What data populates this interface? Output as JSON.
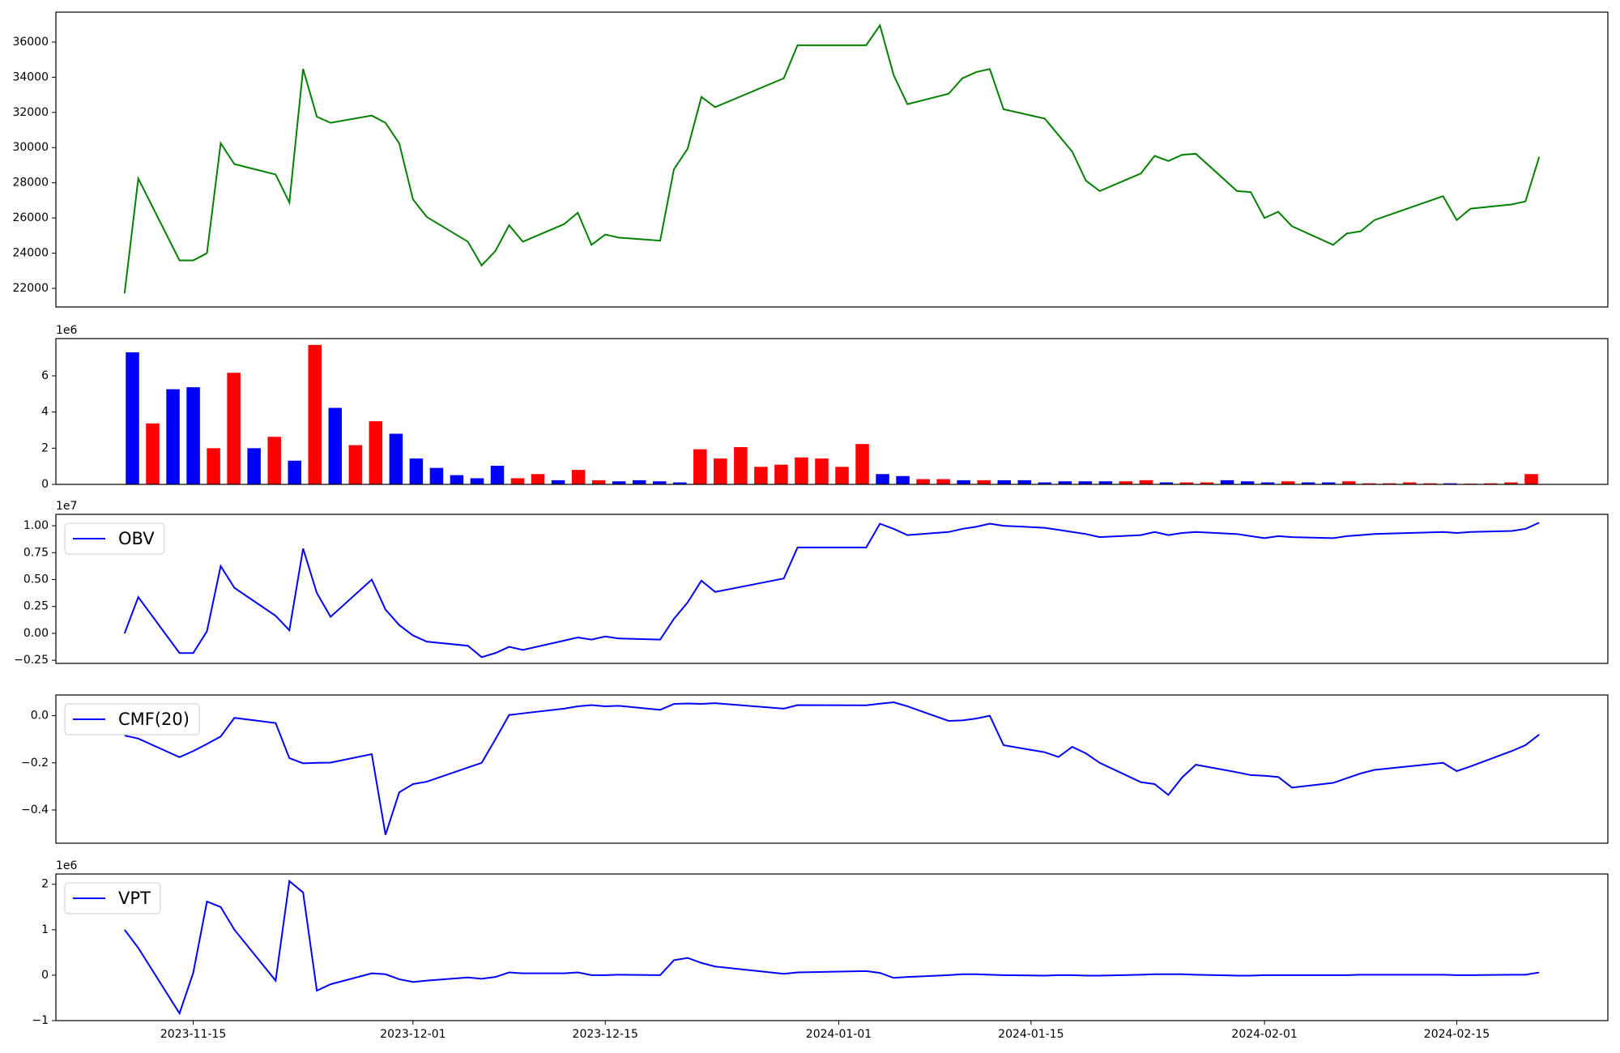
{
  "chart_data": [
    {
      "type": "line",
      "color": "green",
      "x": [
        "2023-11-10",
        "2023-11-11",
        "2023-11-14",
        "2023-11-15",
        "2023-11-16",
        "2023-11-17",
        "2023-11-18",
        "2023-11-21",
        "2023-11-22",
        "2023-11-23",
        "2023-11-24",
        "2023-11-25",
        "2023-11-28",
        "2023-11-29",
        "2023-11-30",
        "2023-12-01",
        "2023-12-02",
        "2023-12-05",
        "2023-12-06",
        "2023-12-07",
        "2023-12-08",
        "2023-12-09",
        "2023-12-12",
        "2023-12-13",
        "2023-12-14",
        "2023-12-15",
        "2023-12-16",
        "2023-12-19",
        "2023-12-20",
        "2023-12-21",
        "2023-12-22",
        "2023-12-23",
        "2023-12-28",
        "2023-12-29",
        "2024-01-03",
        "2024-01-04",
        "2024-01-05",
        "2024-01-06",
        "2024-01-09",
        "2024-01-10",
        "2024-01-11",
        "2024-01-12",
        "2024-01-13",
        "2024-01-16",
        "2024-01-17",
        "2024-01-18",
        "2024-01-19",
        "2024-01-20",
        "2024-01-23",
        "2024-01-24",
        "2024-01-25",
        "2024-01-26",
        "2024-01-27",
        "2024-01-30",
        "2024-01-31",
        "2024-02-01",
        "2024-02-02",
        "2024-02-03",
        "2024-02-06",
        "2024-02-07",
        "2024-02-08",
        "2024-02-09",
        "2024-02-14",
        "2024-02-15",
        "2024-02-16",
        "2024-02-19",
        "2024-02-20",
        "2024-02-21"
      ],
      "values": [
        21710,
        28240,
        23590,
        23590,
        24000,
        30250,
        29060,
        28470,
        26880,
        34470,
        31760,
        31410,
        31820,
        31410,
        30240,
        27060,
        26060,
        24650,
        23300,
        24120,
        25590,
        24650,
        25650,
        26300,
        24470,
        25060,
        24880,
        24710,
        28770,
        29940,
        32880,
        32300,
        33940,
        35820,
        35820,
        36950,
        34120,
        32470,
        33060,
        33940,
        34290,
        34470,
        32180,
        31650,
        30710,
        29770,
        28120,
        27530,
        28530,
        29530,
        29240,
        29590,
        29650,
        27530,
        27470,
        26000,
        26350,
        25530,
        24470,
        25120,
        25240,
        25880,
        27240,
        25880,
        26530,
        26770,
        26940,
        29470
      ],
      "xlim": [
        "2023-11-05",
        "2024-02-26"
      ],
      "ylim": [
        20940,
        37700
      ],
      "yticks": [
        22000,
        24000,
        26000,
        28000,
        30000,
        32000,
        34000,
        36000
      ]
    },
    {
      "type": "bar",
      "offset_label": "1e6",
      "categories": [
        null,
        null,
        null,
        null,
        null,
        null,
        null,
        null,
        null,
        null,
        null,
        null,
        null,
        null,
        null,
        null,
        null,
        null,
        null,
        null,
        null,
        null,
        null,
        null,
        null,
        null,
        null,
        null,
        null,
        null,
        null,
        null,
        null,
        null,
        null,
        null,
        null,
        null,
        null,
        null,
        null,
        null,
        null,
        null,
        null,
        null,
        null,
        null,
        null,
        null,
        null,
        null,
        null,
        null,
        null,
        null,
        null,
        null,
        null,
        null,
        null,
        null,
        null,
        null,
        null,
        null,
        null,
        null,
        null,
        null
      ],
      "values": [
        7300000,
        3370000,
        5260000,
        5370000,
        2000000,
        6170000,
        2000000,
        2630000,
        1310000,
        7710000,
        4230000,
        2170000,
        3490000,
        2800000,
        1430000,
        910000,
        510000,
        340000,
        1030000,
        340000,
        570000,
        230000,
        800000,
        230000,
        170000,
        230000,
        170000,
        110000,
        1940000,
        1430000,
        2060000,
        970000,
        1090000,
        1490000,
        1430000,
        970000,
        2230000,
        570000,
        460000,
        290000,
        290000,
        230000,
        230000,
        230000,
        230000,
        110000,
        170000,
        170000,
        170000,
        170000,
        230000,
        110000,
        110000,
        110000,
        230000,
        170000,
        110000,
        170000,
        110000,
        110000,
        170000,
        60000,
        60000,
        110000,
        60000,
        60000,
        40000,
        60000,
        110000,
        570000
      ],
      "colors": [
        "blue",
        "red",
        "blue",
        "blue",
        "red",
        "red",
        "blue",
        "red",
        "blue",
        "red",
        "blue",
        "red",
        "red",
        "blue",
        "blue",
        "blue",
        "blue",
        "blue",
        "blue",
        "red",
        "red",
        "blue",
        "red",
        "red",
        "blue",
        "blue",
        "blue",
        "blue",
        "red",
        "red",
        "red",
        "red",
        "red",
        "red",
        "red",
        "red",
        "red",
        "blue",
        "blue",
        "red",
        "red",
        "blue",
        "red",
        "blue",
        "blue",
        "blue",
        "blue",
        "blue",
        "blue",
        "red",
        "red",
        "blue",
        "red",
        "red",
        "blue",
        "blue",
        "blue",
        "red",
        "blue",
        "blue",
        "red",
        "red",
        "red",
        "red",
        "red",
        "blue",
        "red",
        "red",
        "red",
        "red"
      ],
      "ylim": [
        0,
        8060000
      ],
      "yticks": [
        {
          "value": 0,
          "label": "0"
        },
        {
          "value": 2000000,
          "label": "2"
        },
        {
          "value": 4000000,
          "label": "4"
        },
        {
          "value": 6000000,
          "label": "6"
        }
      ]
    },
    {
      "type": "line",
      "offset_label": "1e7",
      "legend": "upper left",
      "x": [
        "2023-11-10",
        "2023-11-11",
        "2023-11-14",
        "2023-11-15",
        "2023-11-16",
        "2023-11-17",
        "2023-11-18",
        "2023-11-21",
        "2023-11-22",
        "2023-11-23",
        "2023-11-24",
        "2023-11-25",
        "2023-11-28",
        "2023-11-29",
        "2023-11-30",
        "2023-12-01",
        "2023-12-02",
        "2023-12-05",
        "2023-12-06",
        "2023-12-07",
        "2023-12-08",
        "2023-12-09",
        "2023-12-12",
        "2023-12-13",
        "2023-12-14",
        "2023-12-15",
        "2023-12-16",
        "2023-12-19",
        "2023-12-20",
        "2023-12-21",
        "2023-12-22",
        "2023-12-23",
        "2023-12-28",
        "2023-12-29",
        "2024-01-03",
        "2024-01-04",
        "2024-01-05",
        "2024-01-06",
        "2024-01-09",
        "2024-01-10",
        "2024-01-11",
        "2024-01-12",
        "2024-01-13",
        "2024-01-16",
        "2024-01-17",
        "2024-01-18",
        "2024-01-19",
        "2024-01-20",
        "2024-01-23",
        "2024-01-24",
        "2024-01-25",
        "2024-01-26",
        "2024-01-27",
        "2024-01-30",
        "2024-01-31",
        "2024-02-01",
        "2024-02-02",
        "2024-02-03",
        "2024-02-06",
        "2024-02-07",
        "2024-02-08",
        "2024-02-09",
        "2024-02-14",
        "2024-02-15",
        "2024-02-16",
        "2024-02-19",
        "2024-02-20",
        "2024-02-21"
      ],
      "series": [
        {
          "name": "OBV",
          "color": "blue",
          "values": [
            0,
            3370000,
            -1830000,
            -1830000,
            200000,
            6250000,
            4230000,
            1630000,
            290000,
            7880000,
            3750000,
            1540000,
            5000000,
            2210000,
            770000,
            -190000,
            -770000,
            -1150000,
            -2210000,
            -1830000,
            -1250000,
            -1540000,
            -670000,
            -380000,
            -580000,
            -290000,
            -480000,
            -580000,
            1350000,
            2880000,
            4900000,
            3850000,
            5100000,
            7980000,
            7980000,
            10190000,
            9710000,
            9130000,
            9420000,
            9710000,
            9900000,
            10190000,
            10000000,
            9810000,
            9620000,
            9420000,
            9230000,
            8940000,
            9130000,
            9420000,
            9130000,
            9330000,
            9420000,
            9230000,
            9040000,
            8850000,
            9040000,
            8940000,
            8850000,
            9040000,
            9130000,
            9230000,
            9420000,
            9330000,
            9420000,
            9520000,
            9710000,
            10290000
          ]
        }
      ],
      "xlim": [
        "2023-11-05",
        "2024-02-26"
      ],
      "ylim": [
        -2790000,
        11060000
      ],
      "yticks": [
        {
          "value": -2500000,
          "label": "−0.25"
        },
        {
          "value": 0,
          "label": "0.00"
        },
        {
          "value": 2500000,
          "label": "0.25"
        },
        {
          "value": 5000000,
          "label": "0.50"
        },
        {
          "value": 7500000,
          "label": "0.75"
        },
        {
          "value": 10000000,
          "label": "1.00"
        }
      ]
    },
    {
      "type": "line",
      "legend": "upper left",
      "x": [
        "2023-11-10",
        "2023-11-11",
        "2023-11-14",
        "2023-11-15",
        "2023-11-16",
        "2023-11-17",
        "2023-11-18",
        "2023-11-21",
        "2023-11-22",
        "2023-11-23",
        "2023-11-24",
        "2023-11-25",
        "2023-11-28",
        "2023-11-29",
        "2023-11-30",
        "2023-12-01",
        "2023-12-02",
        "2023-12-05",
        "2023-12-06",
        "2023-12-07",
        "2023-12-08",
        "2023-12-09",
        "2023-12-12",
        "2023-12-13",
        "2023-12-14",
        "2023-12-15",
        "2023-12-16",
        "2023-12-19",
        "2023-12-20",
        "2023-12-21",
        "2023-12-22",
        "2023-12-23",
        "2023-12-28",
        "2023-12-29",
        "2024-01-03",
        "2024-01-04",
        "2024-01-05",
        "2024-01-06",
        "2024-01-09",
        "2024-01-10",
        "2024-01-11",
        "2024-01-12",
        "2024-01-13",
        "2024-01-16",
        "2024-01-17",
        "2024-01-18",
        "2024-01-19",
        "2024-01-20",
        "2024-01-23",
        "2024-01-24",
        "2024-01-25",
        "2024-01-26",
        "2024-01-27",
        "2024-01-30",
        "2024-01-31",
        "2024-02-01",
        "2024-02-02",
        "2024-02-03",
        "2024-02-06",
        "2024-02-07",
        "2024-02-08",
        "2024-02-09",
        "2024-02-14",
        "2024-02-15",
        "2024-02-16",
        "2024-02-19",
        "2024-02-20",
        "2024-02-21"
      ],
      "series": [
        {
          "name": "CMF(20)",
          "color": "blue",
          "values": [
            -0.084,
            -0.097,
            -0.176,
            -0.15,
            -0.12,
            -0.088,
            -0.009,
            -0.031,
            -0.18,
            -0.202,
            -0.2,
            -0.199,
            -0.163,
            -0.505,
            -0.325,
            -0.29,
            -0.28,
            -0.22,
            -0.2,
            -0.1,
            0.003,
            0.01,
            0.03,
            0.04,
            0.045,
            0.04,
            0.042,
            0.025,
            0.05,
            0.052,
            0.05,
            0.053,
            0.03,
            0.045,
            0.044,
            0.051,
            0.057,
            0.04,
            -0.022,
            -0.02,
            -0.012,
            0,
            -0.125,
            -0.155,
            -0.175,
            -0.132,
            -0.16,
            -0.2,
            -0.282,
            -0.29,
            -0.336,
            -0.262,
            -0.208,
            -0.24,
            -0.252,
            -0.255,
            -0.26,
            -0.305,
            -0.285,
            -0.265,
            -0.245,
            -0.23,
            -0.2,
            -0.235,
            -0.215,
            -0.15,
            -0.125,
            -0.08
          ]
        }
      ],
      "xlim": [
        "2023-11-05",
        "2024-02-26"
      ],
      "ylim": [
        -0.541,
        0.088
      ],
      "yticks": [
        {
          "value": -0.4,
          "label": "−0.4"
        },
        {
          "value": -0.2,
          "label": "−0.2"
        },
        {
          "value": 0,
          "label": "0.0"
        }
      ]
    },
    {
      "type": "line",
      "offset_label": "1e6",
      "legend": "upper left",
      "x": [
        "2023-11-10",
        "2023-11-11",
        "2023-11-14",
        "2023-11-15",
        "2023-11-16",
        "2023-11-17",
        "2023-11-18",
        "2023-11-21",
        "2023-11-22",
        "2023-11-23",
        "2023-11-24",
        "2023-11-25",
        "2023-11-28",
        "2023-11-29",
        "2023-11-30",
        "2023-12-01",
        "2023-12-02",
        "2023-12-05",
        "2023-12-06",
        "2023-12-07",
        "2023-12-08",
        "2023-12-09",
        "2023-12-12",
        "2023-12-13",
        "2023-12-14",
        "2023-12-15",
        "2023-12-16",
        "2023-12-19",
        "2023-12-20",
        "2023-12-21",
        "2023-12-22",
        "2023-12-23",
        "2023-12-28",
        "2023-12-29",
        "2024-01-03",
        "2024-01-04",
        "2024-01-05",
        "2024-01-06",
        "2024-01-09",
        "2024-01-10",
        "2024-01-11",
        "2024-01-12",
        "2024-01-13",
        "2024-01-16",
        "2024-01-17",
        "2024-01-18",
        "2024-01-19",
        "2024-01-20",
        "2024-01-23",
        "2024-01-24",
        "2024-01-25",
        "2024-01-26",
        "2024-01-27",
        "2024-01-30",
        "2024-01-31",
        "2024-02-01",
        "2024-02-02",
        "2024-02-03",
        "2024-02-06",
        "2024-02-07",
        "2024-02-08",
        "2024-02-09",
        "2024-02-14",
        "2024-02-15",
        "2024-02-16",
        "2024-02-19",
        "2024-02-20",
        "2024-02-21"
      ],
      "series": [
        {
          "name": "VPT",
          "color": "blue",
          "values": [
            1000000,
            600000,
            -840000,
            50000,
            1620000,
            1500000,
            1000000,
            -120000,
            2070000,
            1820000,
            -340000,
            -200000,
            40000,
            20000,
            -90000,
            -150000,
            -120000,
            -50000,
            -80000,
            -40000,
            60000,
            40000,
            40000,
            60000,
            0,
            0,
            10000,
            0,
            330000,
            380000,
            270000,
            190000,
            30000,
            60000,
            90000,
            50000,
            -60000,
            -40000,
            0,
            20000,
            20000,
            10000,
            0,
            -10000,
            0,
            0,
            -10000,
            -10000,
            10000,
            20000,
            20000,
            20000,
            10000,
            -10000,
            -10000,
            0,
            0,
            0,
            0,
            0,
            10000,
            10000,
            10000,
            0,
            0,
            10000,
            10000,
            60000
          ]
        }
      ],
      "xlim": [
        "2023-11-05",
        "2024-02-26"
      ],
      "xticks": [
        "2023-11-15",
        "2023-12-01",
        "2023-12-15",
        "2024-01-01",
        "2024-01-15",
        "2024-02-01",
        "2024-02-15"
      ],
      "ylim": [
        -1000000,
        2227000
      ],
      "yticks": [
        {
          "value": -1000000,
          "label": "−1"
        },
        {
          "value": 0,
          "label": "0"
        },
        {
          "value": 1000000,
          "label": "1"
        },
        {
          "value": 2000000,
          "label": "2"
        }
      ]
    }
  ]
}
